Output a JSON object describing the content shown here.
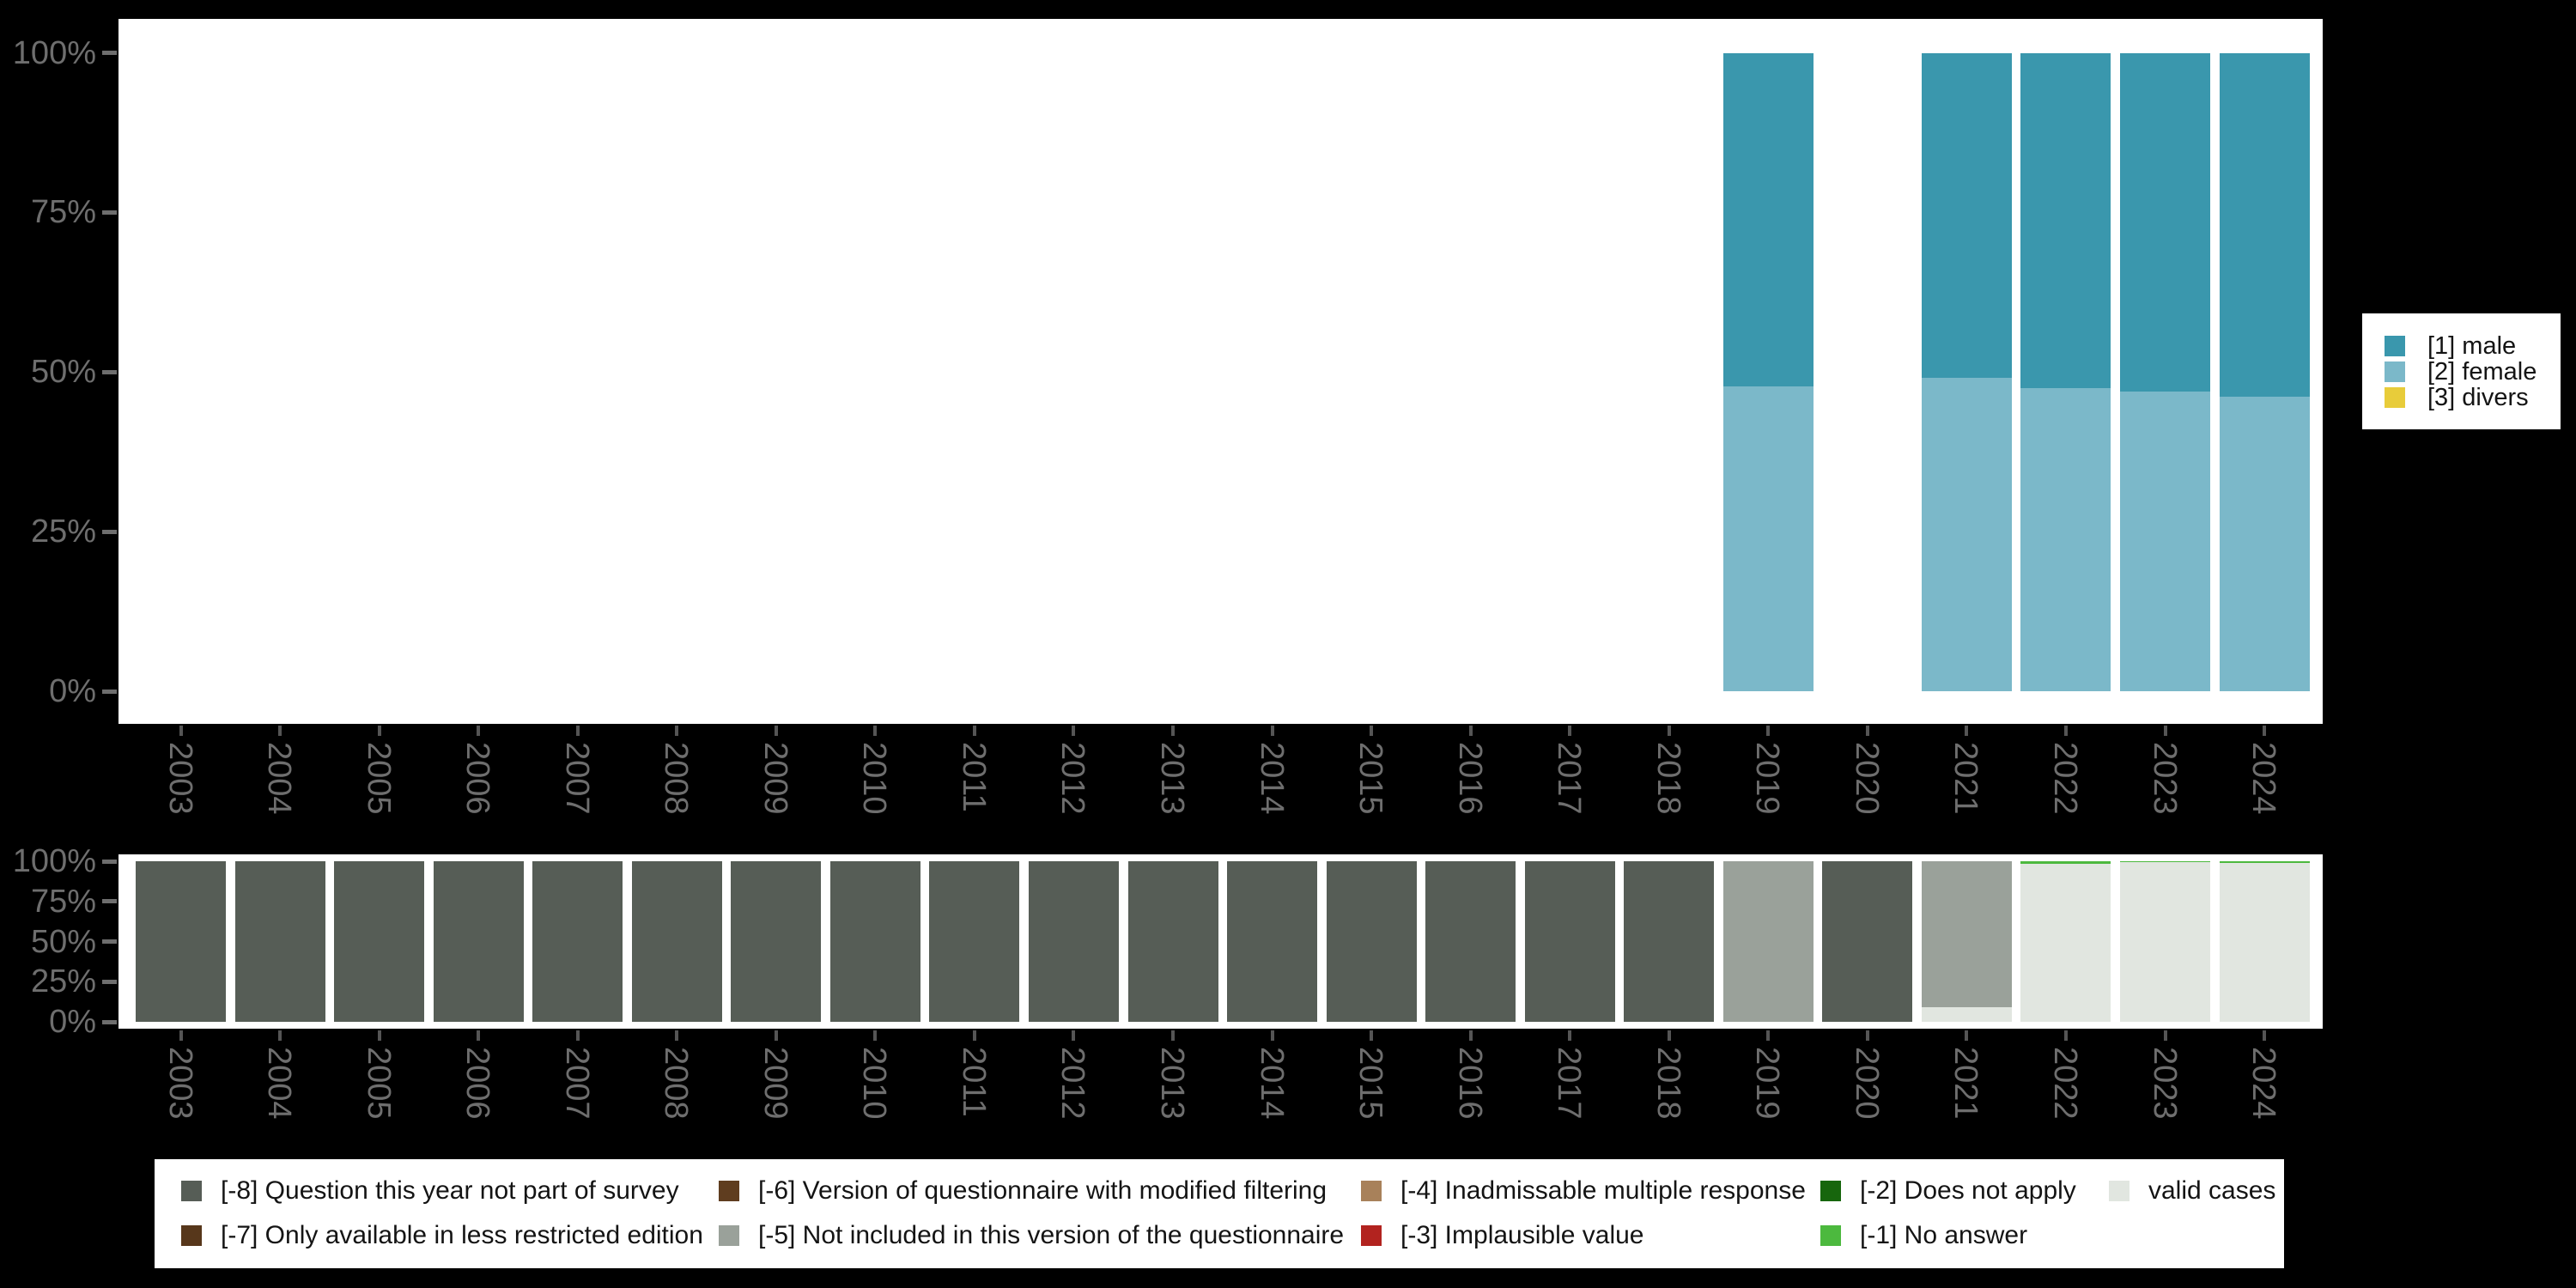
{
  "page": {
    "background": "#000000",
    "panel_background": "#ffffff",
    "axis_text_color": "#6e6e6e",
    "tick_color": "#555555",
    "legend_text_color": "#141414"
  },
  "chart_data": [
    {
      "type": "bar",
      "stacked": true,
      "title": "",
      "xlabel": "",
      "ylabel": "",
      "ylim": [
        0,
        100
      ],
      "grid": false,
      "categories": [
        "2003",
        "2004",
        "2005",
        "2006",
        "2007",
        "2008",
        "2009",
        "2010",
        "2011",
        "2012",
        "2013",
        "2014",
        "2015",
        "2016",
        "2017",
        "2018",
        "2019",
        "2020",
        "2021",
        "2022",
        "2023",
        "2024"
      ],
      "ytick_values": [
        0,
        25,
        50,
        75,
        100
      ],
      "ytick_labels": [
        "0%",
        "25%",
        "50%",
        "75%",
        "100%"
      ],
      "series": [
        {
          "name": "[1] male",
          "color": "#3A97AD",
          "values": [
            null,
            null,
            null,
            null,
            null,
            null,
            null,
            null,
            null,
            null,
            null,
            null,
            null,
            null,
            null,
            null,
            52.2,
            null,
            50.9,
            52.5,
            53.1,
            53.9
          ]
        },
        {
          "name": "[2] female",
          "color": "#7BB8C9",
          "values": [
            null,
            null,
            null,
            null,
            null,
            null,
            null,
            null,
            null,
            null,
            null,
            null,
            null,
            null,
            null,
            null,
            47.8,
            null,
            49.1,
            47.5,
            46.9,
            46.1
          ]
        },
        {
          "name": "[3] divers",
          "color": "#E8CC3A",
          "values": [
            null,
            null,
            null,
            null,
            null,
            null,
            null,
            null,
            null,
            null,
            null,
            null,
            null,
            null,
            null,
            null,
            0,
            null,
            0,
            0,
            0,
            0
          ]
        }
      ],
      "legend": {
        "position": "right",
        "entries": [
          {
            "label": "[1] male",
            "color": "#3A97AD"
          },
          {
            "label": "[2] female",
            "color": "#7BB8C9"
          },
          {
            "label": "[3] divers",
            "color": "#E8CC3A"
          }
        ]
      }
    },
    {
      "type": "bar",
      "stacked": true,
      "title": "",
      "xlabel": "",
      "ylabel": "",
      "ylim": [
        0,
        100
      ],
      "grid": false,
      "categories": [
        "2003",
        "2004",
        "2005",
        "2006",
        "2007",
        "2008",
        "2009",
        "2010",
        "2011",
        "2012",
        "2013",
        "2014",
        "2015",
        "2016",
        "2017",
        "2018",
        "2019",
        "2020",
        "2021",
        "2022",
        "2023",
        "2024"
      ],
      "ytick_values": [
        0,
        25,
        50,
        75,
        100
      ],
      "ytick_labels": [
        "0%",
        "25%",
        "50%",
        "75%",
        "100%"
      ],
      "series": [
        {
          "name": "[-8] Question this year not part of survey",
          "color": "#565D56",
          "values": [
            100,
            100,
            100,
            100,
            100,
            100,
            100,
            100,
            100,
            100,
            100,
            100,
            100,
            100,
            100,
            100,
            null,
            100,
            null,
            null,
            null,
            null
          ]
        },
        {
          "name": "[-7] Only available in less restricted edition",
          "color": "#57371B",
          "values": [
            null,
            null,
            null,
            null,
            null,
            null,
            null,
            null,
            null,
            null,
            null,
            null,
            null,
            null,
            null,
            null,
            null,
            null,
            null,
            null,
            null,
            null
          ]
        },
        {
          "name": "[-6] Version of questionnaire with modified filtering",
          "color": "#5F3D1F",
          "values": [
            null,
            null,
            null,
            null,
            null,
            null,
            null,
            null,
            null,
            null,
            null,
            null,
            null,
            null,
            null,
            null,
            null,
            null,
            null,
            null,
            null,
            null
          ]
        },
        {
          "name": "[-5] Not included in this version of the questionnaire",
          "color": "#9AA19A",
          "values": [
            null,
            null,
            null,
            null,
            null,
            null,
            null,
            null,
            null,
            null,
            null,
            null,
            null,
            null,
            null,
            null,
            100,
            null,
            90.7,
            null,
            null,
            null
          ]
        },
        {
          "name": "[-4] Inadmissable multiple response",
          "color": "#A8815A",
          "values": [
            null,
            null,
            null,
            null,
            null,
            null,
            null,
            null,
            null,
            null,
            null,
            null,
            null,
            null,
            null,
            null,
            null,
            null,
            null,
            null,
            null,
            null
          ]
        },
        {
          "name": "[-3] Implausible value",
          "color": "#B2231F",
          "values": [
            null,
            null,
            null,
            null,
            null,
            null,
            null,
            null,
            null,
            null,
            null,
            null,
            null,
            null,
            null,
            null,
            null,
            null,
            null,
            null,
            null,
            null
          ]
        },
        {
          "name": "[-2] Does not apply",
          "color": "#17660D",
          "values": [
            null,
            null,
            null,
            null,
            null,
            null,
            null,
            null,
            null,
            null,
            null,
            null,
            null,
            null,
            null,
            null,
            null,
            null,
            null,
            null,
            null,
            null
          ]
        },
        {
          "name": "[-1] No answer",
          "color": "#4CB93E",
          "values": [
            null,
            null,
            null,
            null,
            null,
            null,
            null,
            null,
            null,
            null,
            null,
            null,
            null,
            null,
            null,
            null,
            null,
            null,
            null,
            1.4,
            0.7,
            1.0
          ]
        },
        {
          "name": "valid cases",
          "color": "#E1E6E0",
          "values": [
            null,
            null,
            null,
            null,
            null,
            null,
            null,
            null,
            null,
            null,
            null,
            null,
            null,
            null,
            null,
            null,
            null,
            null,
            9.3,
            98.6,
            99.3,
            99.0
          ]
        }
      ],
      "legend": {
        "position": "bottom",
        "entries": [
          {
            "label": "[-8] Question this year not part of survey",
            "color": "#565D56",
            "col": 0,
            "row": 0
          },
          {
            "label": "[-7] Only available in less restricted edition",
            "color": "#57371B",
            "col": 0,
            "row": 1
          },
          {
            "label": "[-6] Version of questionnaire with modified filtering",
            "color": "#5F3D1F",
            "col": 1,
            "row": 0
          },
          {
            "label": "[-5] Not included in this version of the questionnaire",
            "color": "#9AA19A",
            "col": 1,
            "row": 1
          },
          {
            "label": "[-4] Inadmissable multiple response",
            "color": "#A8815A",
            "col": 2,
            "row": 0
          },
          {
            "label": "[-3] Implausible value",
            "color": "#B2231F",
            "col": 2,
            "row": 1
          },
          {
            "label": "[-2] Does not apply",
            "color": "#17660D",
            "col": 3,
            "row": 0
          },
          {
            "label": "[-1] No answer",
            "color": "#4CB93E",
            "col": 3,
            "row": 1
          },
          {
            "label": "valid cases",
            "color": "#E1E6E0",
            "col": 4,
            "row": 0
          }
        ]
      }
    }
  ]
}
